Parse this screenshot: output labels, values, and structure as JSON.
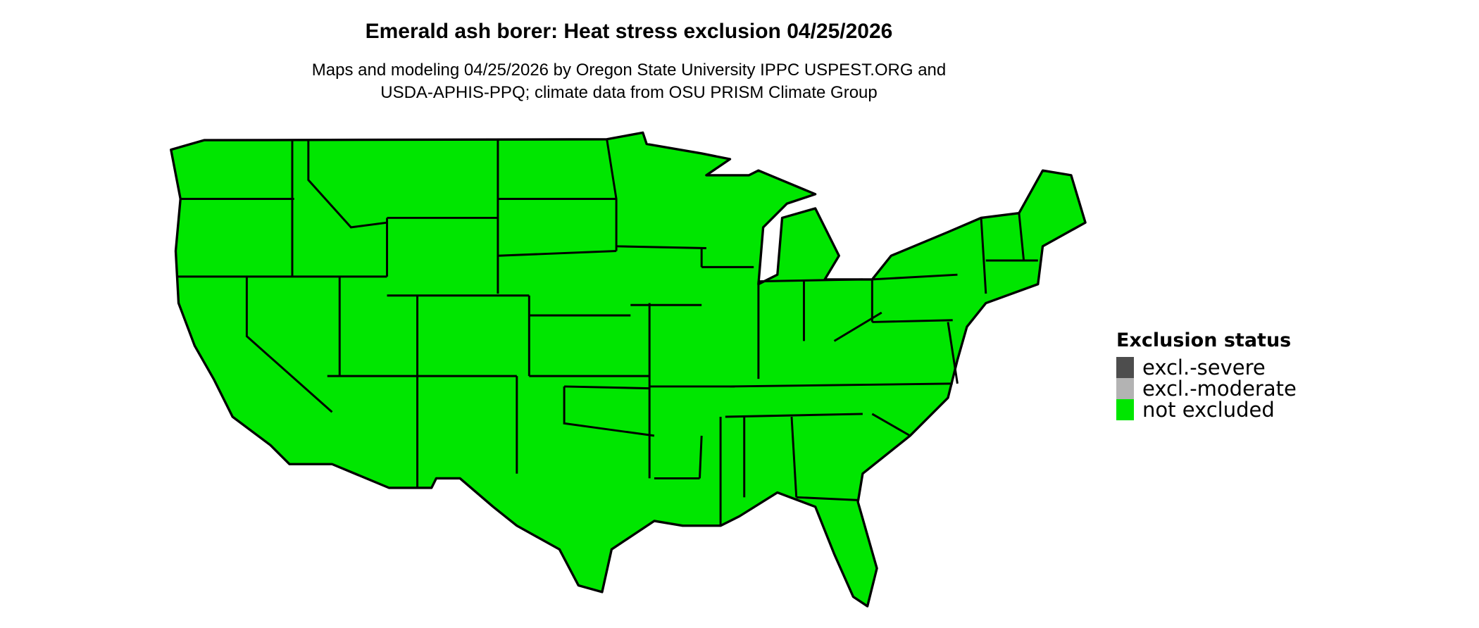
{
  "title": "Emerald ash borer: Heat stress exclusion 04/25/2026",
  "subtitle_lines": [
    "Maps and modeling 04/25/2026 by Oregon State University IPPC USPEST.ORG and",
    "USDA-APHIS-PPQ; climate data from OSU PRISM Climate Group"
  ],
  "legend": {
    "title": "Exclusion status",
    "items": [
      {
        "label": "excl.-severe",
        "color": "#4d4d4d"
      },
      {
        "label": "excl.-moderate",
        "color": "#b3b3b3"
      },
      {
        "label": "not excluded",
        "color": "#00e600"
      }
    ]
  },
  "map": {
    "region": "Contiguous United States",
    "status_everywhere": "not excluded",
    "fill_color": "#00e600",
    "border_color": "#000000"
  }
}
